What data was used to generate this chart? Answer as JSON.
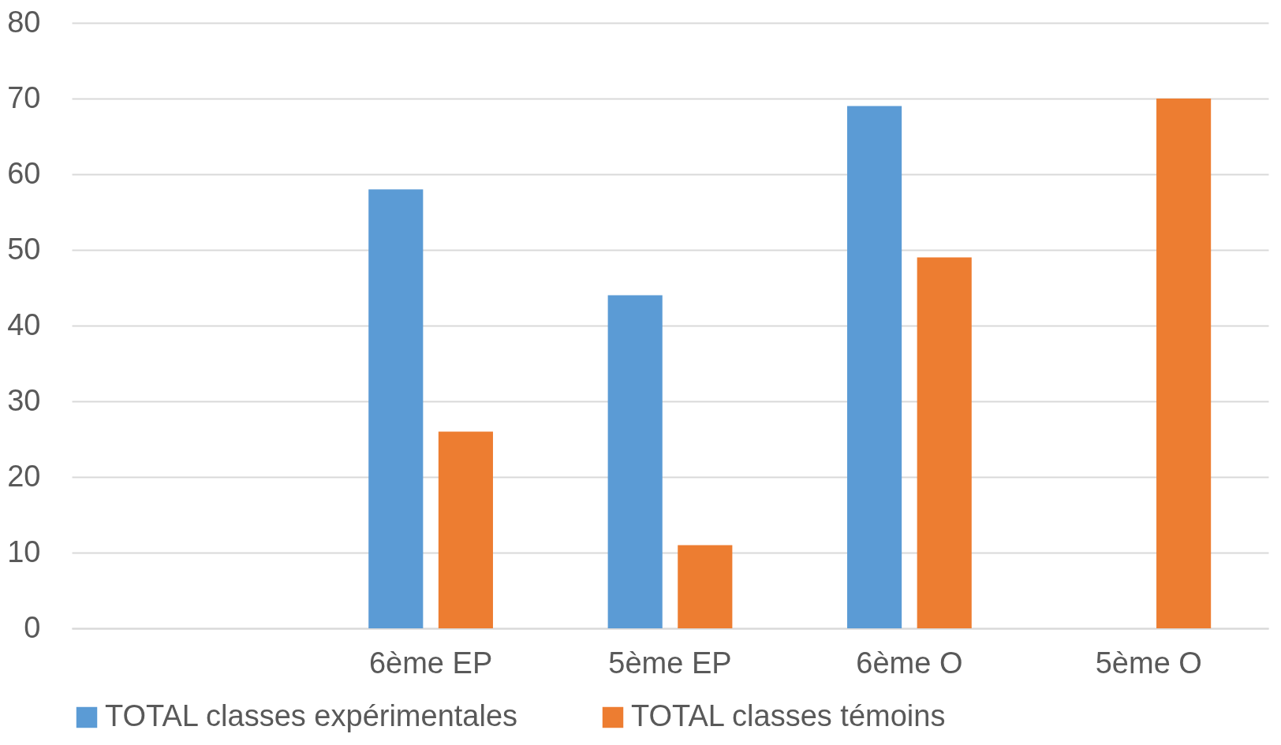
{
  "chart_data": {
    "type": "bar",
    "categories": [
      null,
      "6ème EP",
      "5ème EP",
      "6ème O",
      "5ème O"
    ],
    "series": [
      {
        "name": "TOTAL classes expérimentales",
        "color": "#5b9bd5",
        "values": [
          null,
          58,
          44,
          69,
          null
        ]
      },
      {
        "name": "TOTAL classes témoins",
        "color": "#ed7d31",
        "values": [
          null,
          26,
          11,
          49,
          70
        ]
      }
    ],
    "ylim": [
      0,
      80
    ],
    "yticks": [
      0,
      10,
      20,
      30,
      40,
      50,
      60,
      70,
      80
    ],
    "grid": "y",
    "legend": "bottom"
  }
}
